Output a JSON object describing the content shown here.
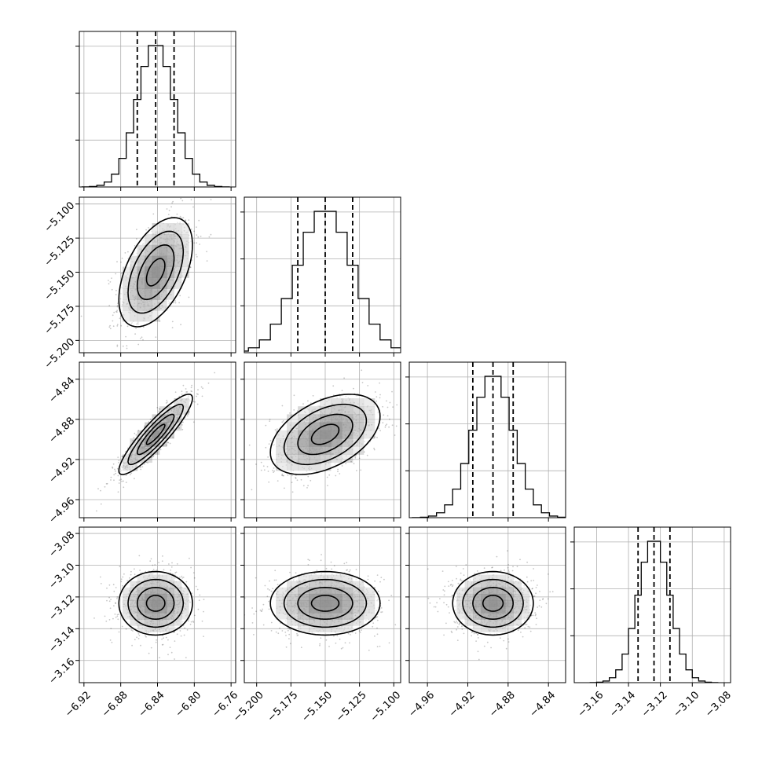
{
  "chart_data": {
    "type": "corner",
    "grid": true,
    "parameters": [
      {
        "range": [
          -6.925,
          -6.755
        ],
        "ticks": [
          -6.92,
          -6.88,
          -6.84,
          -6.8,
          -6.76
        ],
        "tick_labels": [
          "−6.92",
          "−6.88",
          "−6.84",
          "−6.80",
          "−6.76"
        ],
        "mean": -6.842,
        "sd": 0.02,
        "quantiles": [
          -6.862,
          -6.842,
          -6.822
        ]
      },
      {
        "range": [
          -5.209,
          -5.095
        ],
        "ticks": [
          -5.2,
          -5.175,
          -5.15,
          -5.125,
          -5.1
        ],
        "tick_labels": [
          "−5.200",
          "−5.175",
          "−5.150",
          "−5.125",
          "−5.100"
        ],
        "mean": -5.15,
        "sd": 0.02,
        "quantiles": [
          -5.17,
          -5.15,
          -5.13
        ]
      },
      {
        "range": [
          -4.978,
          -4.823
        ],
        "ticks": [
          -4.96,
          -4.92,
          -4.88,
          -4.84
        ],
        "tick_labels": [
          "−4.96",
          "−4.92",
          "−4.88",
          "−4.84"
        ],
        "mean": -4.895,
        "sd": 0.02,
        "quantiles": [
          -4.915,
          -4.895,
          -4.875
        ]
      },
      {
        "range": [
          -3.174,
          -3.076
        ],
        "ticks": [
          -3.16,
          -3.14,
          -3.12,
          -3.1,
          -3.08
        ],
        "tick_labels": [
          "−3.16",
          "−3.14",
          "−3.12",
          "−3.10",
          "−3.08"
        ],
        "mean": -3.124,
        "sd": 0.01,
        "quantiles": [
          -3.134,
          -3.124,
          -3.114
        ]
      }
    ],
    "correlations": [
      {
        "pair": [
          0,
          1
        ],
        "rho": 0.5
      },
      {
        "pair": [
          0,
          2
        ],
        "rho": 0.9
      },
      {
        "pair": [
          1,
          2
        ],
        "rho": 0.45
      },
      {
        "pair": [
          0,
          3
        ],
        "rho": 0.0
      },
      {
        "pair": [
          1,
          3
        ],
        "rho": 0.0
      },
      {
        "pair": [
          2,
          3
        ],
        "rho": 0.0
      }
    ],
    "histogram_bins": 20,
    "contour_levels_sigma": [
      0.5,
      1.0,
      1.5,
      2.0
    ],
    "colors": {
      "line": "#000000",
      "grid": "#b0b0b0",
      "scatter": "#000000",
      "density": "#000000"
    }
  }
}
